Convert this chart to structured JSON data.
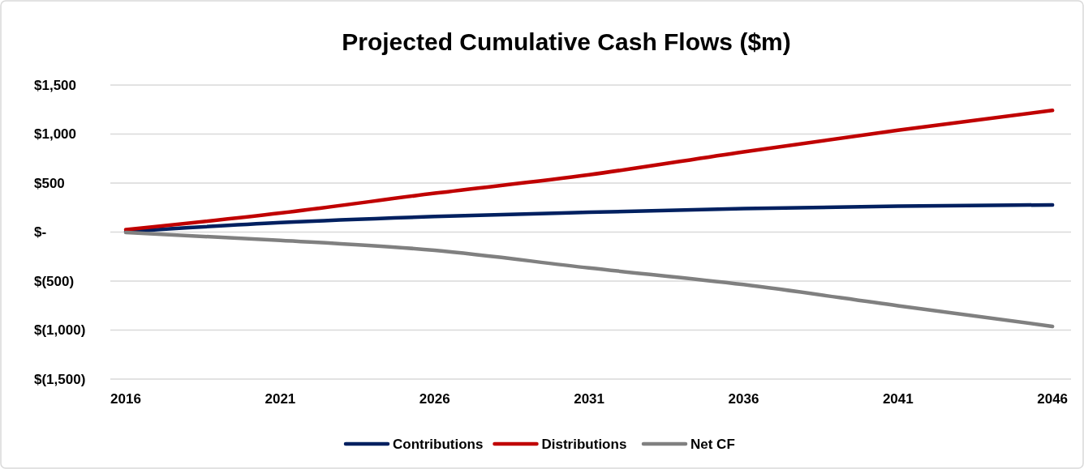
{
  "chart_data": {
    "type": "line",
    "title": "Projected Cumulative Cash Flows ($m)",
    "x": [
      2016,
      2021,
      2026,
      2031,
      2036,
      2041,
      2046
    ],
    "series": [
      {
        "name": "Contributions",
        "color": "#002060",
        "values": [
          5,
          97,
          159,
          202,
          239,
          265,
          277
        ]
      },
      {
        "name": "Distributions",
        "color": "#c00000",
        "values": [
          25,
          194,
          396,
          585,
          819,
          1039,
          1242
        ]
      },
      {
        "name": "Net CF",
        "color": "#808080",
        "values": [
          -5,
          -84,
          -186,
          -366,
          -536,
          -752,
          -962
        ]
      }
    ],
    "xlim": [
      2015.5,
      2046.6
    ],
    "xticks": [
      2016,
      2021,
      2026,
      2031,
      2036,
      2041,
      2046
    ],
    "ylim": [
      -1500,
      1500
    ],
    "yticks": [
      {
        "value": -1500,
        "label": "$(1,500)"
      },
      {
        "value": -1000,
        "label": "$(1,000)"
      },
      {
        "value": -500,
        "label": "$(500)"
      },
      {
        "value": 0,
        "label": "$-"
      },
      {
        "value": 500,
        "label": "$500"
      },
      {
        "value": 1000,
        "label": "$1,000"
      },
      {
        "value": 1500,
        "label": "$1,500"
      }
    ],
    "grid": "y",
    "legend": "bottom",
    "marker": "none",
    "line_style": "solid"
  }
}
